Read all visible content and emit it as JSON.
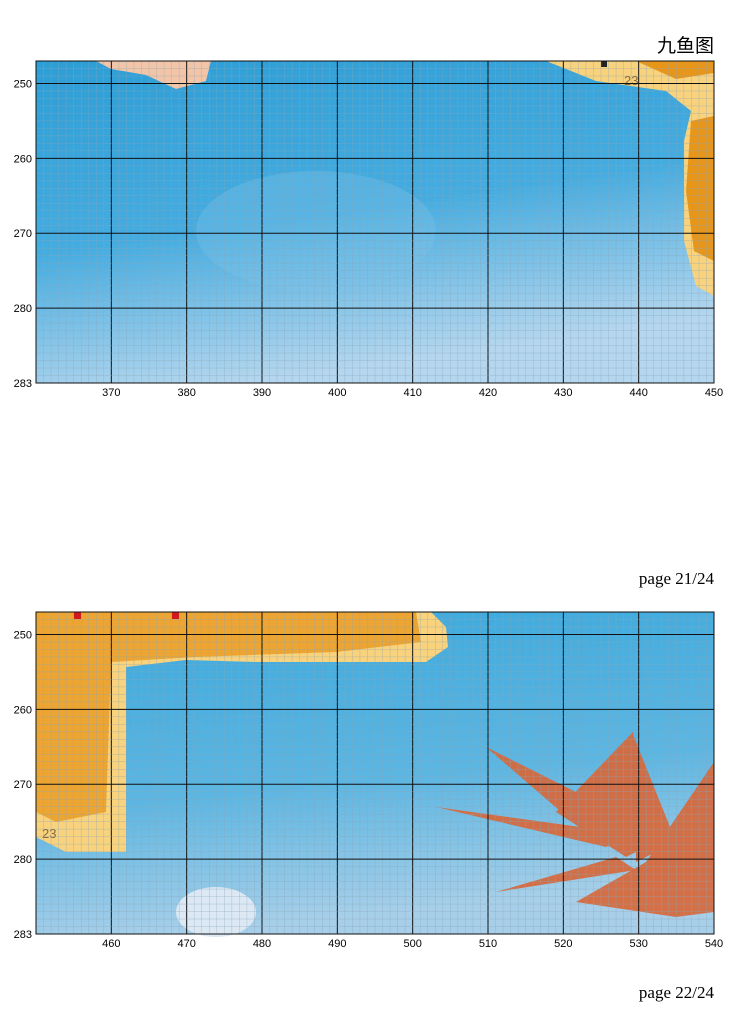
{
  "header": {
    "title": "九鱼图"
  },
  "panels": [
    {
      "x_labels": [
        "370",
        "380",
        "390",
        "400",
        "410",
        "420",
        "430",
        "440",
        "450"
      ],
      "y_labels": [
        "250",
        "260",
        "270",
        "280",
        "283"
      ],
      "symbol_label": "23",
      "page": "page 21/24"
    },
    {
      "x_labels": [
        "460",
        "470",
        "480",
        "490",
        "500",
        "510",
        "520",
        "530",
        "540"
      ],
      "y_labels": [
        "250",
        "260",
        "270",
        "280",
        "283"
      ],
      "symbol_label": "23",
      "page": "page 22/24"
    }
  ]
}
